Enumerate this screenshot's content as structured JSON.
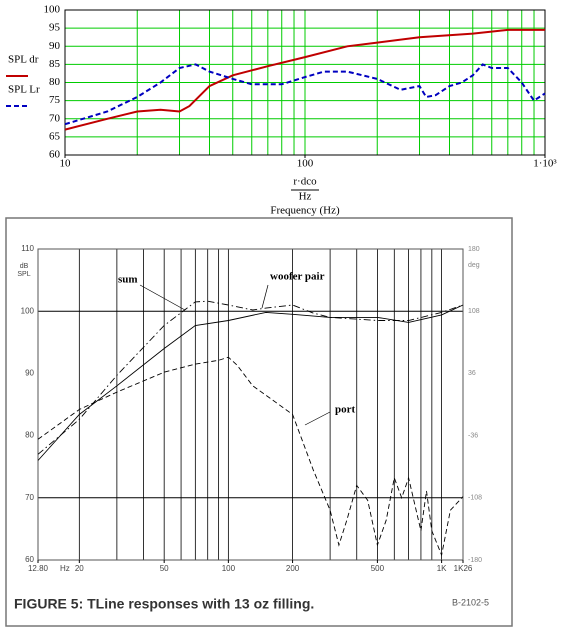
{
  "chart_data": [
    {
      "type": "line",
      "xlog": true,
      "xlim": [
        10,
        1000
      ],
      "ylim": [
        60,
        100
      ],
      "xticks": [
        10,
        100,
        {
          "value": 1000,
          "label": "1·10³"
        }
      ],
      "xgrid": [
        10,
        20,
        30,
        40,
        50,
        60,
        70,
        80,
        90,
        100,
        200,
        300,
        400,
        500,
        600,
        700,
        800,
        900,
        1000
      ],
      "yticks": [
        60,
        65,
        70,
        75,
        80,
        85,
        90,
        95,
        100
      ],
      "grid": true,
      "grid_color": "#00cc00",
      "xlabel_top": "r·dco",
      "xlabel_unit": "Hz",
      "xlabel": "Frequency (Hz)",
      "series": [
        {
          "name": "SPL dr",
          "color": "#c00000",
          "dash": "solid",
          "x": [
            10,
            15,
            20,
            25,
            30,
            33,
            40,
            50,
            70,
            100,
            150,
            200,
            300,
            500,
            700,
            1000
          ],
          "values": [
            67,
            70,
            72,
            72.5,
            72,
            73.5,
            79,
            82,
            84.5,
            87,
            90,
            91,
            92.5,
            93.5,
            94.5,
            94.5
          ]
        },
        {
          "name": "SPL Lr",
          "color": "#0000c0",
          "dash": "dashed",
          "x": [
            10,
            15,
            20,
            25,
            30,
            35,
            40,
            50,
            60,
            80,
            100,
            120,
            150,
            200,
            250,
            300,
            320,
            350,
            400,
            450,
            500,
            550,
            600,
            700,
            800,
            900,
            1000
          ],
          "values": [
            68.5,
            72,
            76,
            80,
            84,
            85,
            83,
            81,
            79.5,
            79.5,
            81.5,
            83,
            83,
            81,
            78,
            79,
            76,
            76.5,
            79,
            80,
            82,
            85,
            84,
            84,
            80,
            75,
            77
          ]
        }
      ]
    },
    {
      "type": "line",
      "xlog": true,
      "xlim": [
        12.8,
        1260
      ],
      "ylim": [
        60,
        110
      ],
      "xticks": [
        {
          "value": 12.8,
          "label": "12.80"
        },
        20,
        50,
        100,
        200,
        500,
        {
          "value": 1000,
          "label": "1K"
        },
        {
          "value": 1260,
          "label": "1K26"
        }
      ],
      "xunit": "Hz",
      "xgrid": [
        20,
        30,
        40,
        50,
        60,
        70,
        80,
        90,
        100,
        200,
        300,
        400,
        500,
        600,
        700,
        800,
        900,
        1000
      ],
      "yticks": [
        60,
        70,
        80,
        90,
        100,
        110
      ],
      "ygrid": [
        70,
        100
      ],
      "ylabel": [
        "dB",
        "SPL"
      ],
      "y2lim": [
        -180,
        180
      ],
      "y2ticks": [
        -180,
        -108,
        -36,
        36,
        108,
        180
      ],
      "y2label": "deg",
      "grid": true,
      "grid_color": "#000000",
      "series": [
        {
          "name": "sum",
          "color": "#000000",
          "dash": "dash-dot",
          "x": [
            12.8,
            20,
            30,
            50,
            70,
            80,
            100,
            130,
            150,
            200,
            250,
            300,
            500,
            700,
            1000,
            1260
          ],
          "values": [
            77,
            82.6,
            89.7,
            97.7,
            101.5,
            101.6,
            101,
            100.2,
            100.5,
            101,
            99.7,
            99,
            98.5,
            98.5,
            99.8,
            101
          ]
        },
        {
          "name": "woofer pair",
          "color": "#000000",
          "dash": "solid",
          "x": [
            12.8,
            20,
            30,
            50,
            70,
            100,
            150,
            200,
            300,
            500,
            700,
            1000,
            1260
          ],
          "values": [
            76,
            83.4,
            88,
            94,
            97.7,
            98.5,
            99.8,
            99.5,
            99,
            99,
            98.2,
            99.4,
            101
          ]
        },
        {
          "name": "port",
          "color": "#000000",
          "dash": "dashed",
          "x": [
            12.8,
            20,
            30,
            50,
            70,
            90,
            100,
            110,
            130,
            160,
            200,
            250,
            300,
            330,
            360,
            400,
            450,
            500,
            550,
            600,
            650,
            700,
            800,
            850,
            900,
            1000,
            1100,
            1260
          ],
          "values": [
            79.4,
            84.2,
            87,
            90.2,
            91.5,
            92.1,
            92.6,
            91.3,
            88,
            85.8,
            83.4,
            74.5,
            68,
            62.4,
            66.5,
            72,
            69.6,
            62.4,
            66.4,
            73.2,
            70,
            73.2,
            64.7,
            71.1,
            64.7,
            60.8,
            68,
            70.2
          ]
        }
      ]
    }
  ],
  "caption": "FIGURE 5: TLine responses with 13 oz filling.",
  "figure_code": "B-2102-5"
}
